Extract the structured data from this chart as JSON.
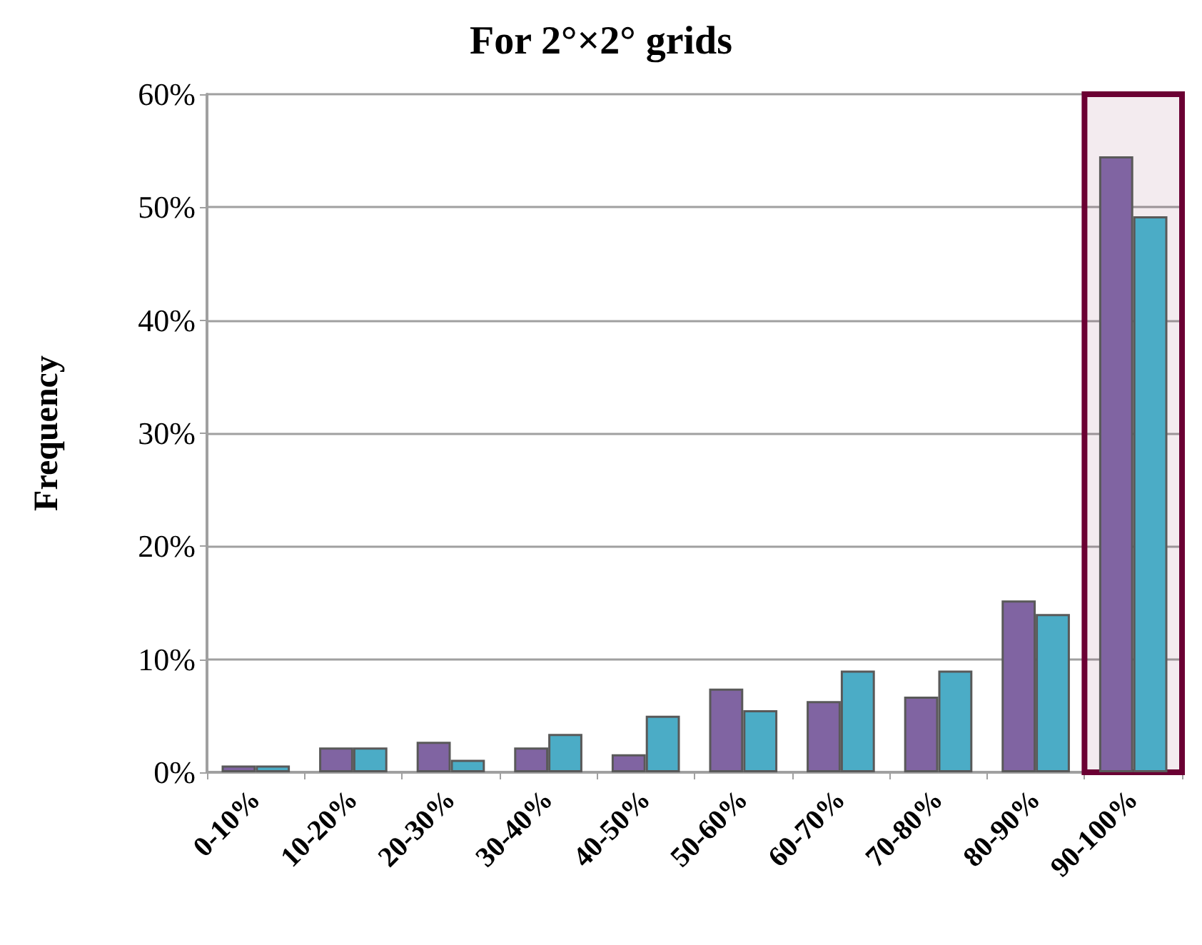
{
  "chart_data": {
    "type": "bar",
    "title": "For 2°×2° grids",
    "ylabel": "Frequency",
    "categories": [
      "0-10%",
      "10-20%",
      "20-30%",
      "30-40%",
      "40-50%",
      "50-60%",
      "60-70%",
      "70-80%",
      "80-90%",
      "90-100%"
    ],
    "series": [
      {
        "color": "#8064a2",
        "values": [
          0.6,
          2.2,
          2.7,
          2.2,
          1.6,
          7.4,
          6.3,
          6.7,
          15.2,
          54.5
        ]
      },
      {
        "color": "#4bacc6",
        "values": [
          0.6,
          2.2,
          1.1,
          3.4,
          5.0,
          5.5,
          9.0,
          9.0,
          14.0,
          49.2
        ]
      }
    ],
    "ylim": [
      0,
      60
    ],
    "yticks": [
      {
        "value": 0,
        "label": "0%"
      },
      {
        "value": 10,
        "label": "10%"
      },
      {
        "value": 20,
        "label": "20%"
      },
      {
        "value": 30,
        "label": "30%"
      },
      {
        "value": 40,
        "label": "40%"
      },
      {
        "value": 50,
        "label": "50%"
      },
      {
        "value": 60,
        "label": "60%"
      }
    ],
    "grid": "y",
    "bands": [
      {
        "axis": "x",
        "from": "90-100%",
        "to": "90-100%",
        "color": "#6b0033"
      }
    ]
  }
}
